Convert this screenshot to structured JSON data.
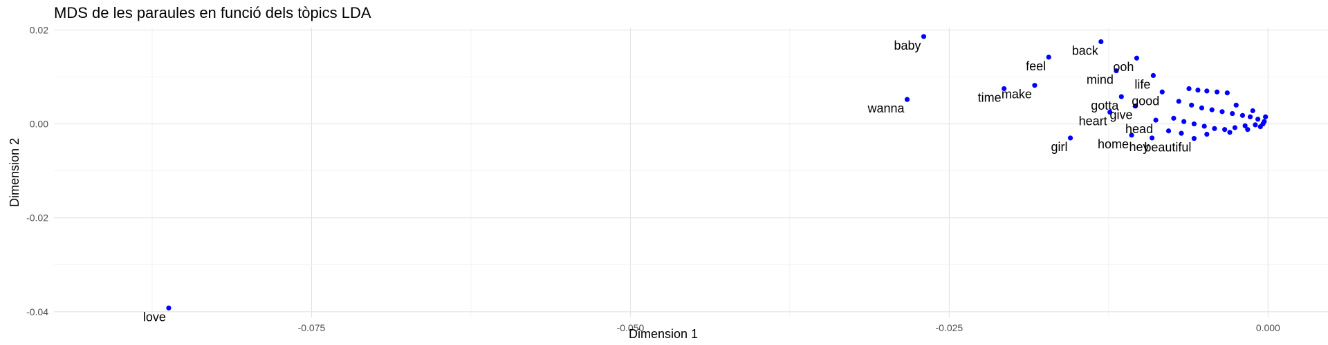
{
  "chart_data": {
    "type": "scatter",
    "title": "MDS de les paraules en funció dels tòpics LDA",
    "xlabel": "Dimension 1",
    "ylabel": "Dimension 2",
    "xlim": [
      -0.0952,
      0.0047
    ],
    "ylim": [
      -0.0412,
      0.0205
    ],
    "x_ticks": [
      -0.075,
      -0.05,
      -0.025,
      0.0
    ],
    "x_tick_labels": [
      "-0.075",
      "-0.050",
      "-0.025",
      "0.000"
    ],
    "y_ticks": [
      0.02,
      0.0,
      -0.02,
      -0.04
    ],
    "y_tick_labels": [
      "0.02",
      "0.00",
      "-0.02",
      "-0.04"
    ],
    "grid": true,
    "point_color": "#0000ff",
    "points": [
      {
        "word": "love",
        "x": -0.0862,
        "y": -0.0392
      },
      {
        "word": "baby",
        "x": -0.027,
        "y": 0.0186
      },
      {
        "word": "wanna",
        "x": -0.0283,
        "y": 0.0052
      },
      {
        "word": "feel",
        "x": -0.0172,
        "y": 0.0142
      },
      {
        "word": "time",
        "x": -0.0207,
        "y": 0.0075
      },
      {
        "word": "make",
        "x": -0.0183,
        "y": 0.0082
      },
      {
        "word": "back",
        "x": -0.0131,
        "y": 0.0175
      },
      {
        "word": "ooh",
        "x": -0.0103,
        "y": 0.014
      },
      {
        "word": "mind",
        "x": -0.0119,
        "y": 0.0113
      },
      {
        "word": "life",
        "x": -0.009,
        "y": 0.0103
      },
      {
        "word": "girl",
        "x": -0.0155,
        "y": -0.003
      },
      {
        "word": "heart",
        "x": -0.0124,
        "y": 0.0025
      },
      {
        "word": "gotta",
        "x": -0.0115,
        "y": 0.0058
      },
      {
        "word": "good",
        "x": -0.0083,
        "y": 0.0068
      },
      {
        "word": "give",
        "x": -0.0104,
        "y": 0.0038
      },
      {
        "word": "home",
        "x": -0.0107,
        "y": -0.0024
      },
      {
        "word": "hey",
        "x": -0.0091,
        "y": -0.003
      },
      {
        "word": "beautiful",
        "x": -0.0058,
        "y": -0.0031
      },
      {
        "word": "head",
        "x": -0.0088,
        "y": 0.0008
      },
      {
        "word": "",
        "x": -0.0062,
        "y": 0.0075
      },
      {
        "word": "",
        "x": -0.0055,
        "y": 0.0072
      },
      {
        "word": "",
        "x": -0.0048,
        "y": 0.007
      },
      {
        "word": "",
        "x": -0.004,
        "y": 0.0068
      },
      {
        "word": "",
        "x": -0.0032,
        "y": 0.0066
      },
      {
        "word": "",
        "x": -0.007,
        "y": 0.0048
      },
      {
        "word": "",
        "x": -0.006,
        "y": 0.004
      },
      {
        "word": "",
        "x": -0.0052,
        "y": 0.0034
      },
      {
        "word": "",
        "x": -0.0044,
        "y": 0.003
      },
      {
        "word": "",
        "x": -0.0036,
        "y": 0.0026
      },
      {
        "word": "",
        "x": -0.0028,
        "y": 0.0022
      },
      {
        "word": "",
        "x": -0.002,
        "y": 0.0018
      },
      {
        "word": "",
        "x": -0.0014,
        "y": 0.0015
      },
      {
        "word": "",
        "x": -0.0008,
        "y": 0.001
      },
      {
        "word": "",
        "x": -0.0003,
        "y": 0.0005
      },
      {
        "word": "",
        "x": -0.0074,
        "y": 0.0012
      },
      {
        "word": "",
        "x": -0.0066,
        "y": 0.0005
      },
      {
        "word": "",
        "x": -0.0058,
        "y": 0.0
      },
      {
        "word": "",
        "x": -0.005,
        "y": -0.0005
      },
      {
        "word": "",
        "x": -0.0042,
        "y": -0.001
      },
      {
        "word": "",
        "x": -0.0034,
        "y": -0.0012
      },
      {
        "word": "",
        "x": -0.0026,
        "y": -0.0008
      },
      {
        "word": "",
        "x": -0.0018,
        "y": -0.0004
      },
      {
        "word": "",
        "x": -0.001,
        "y": -0.0002
      },
      {
        "word": "",
        "x": -0.0004,
        "y": 0.0
      },
      {
        "word": "",
        "x": -0.0078,
        "y": -0.0015
      },
      {
        "word": "",
        "x": -0.0068,
        "y": -0.002
      },
      {
        "word": "",
        "x": -0.0048,
        "y": -0.0022
      },
      {
        "word": "",
        "x": -0.003,
        "y": -0.0018
      },
      {
        "word": "",
        "x": -0.0016,
        "y": -0.0012
      },
      {
        "word": "",
        "x": -0.0006,
        "y": -0.0006
      },
      {
        "word": "",
        "x": -0.0025,
        "y": 0.004
      },
      {
        "word": "",
        "x": -0.0012,
        "y": 0.0028
      },
      {
        "word": "",
        "x": -0.0002,
        "y": 0.0015
      }
    ]
  }
}
